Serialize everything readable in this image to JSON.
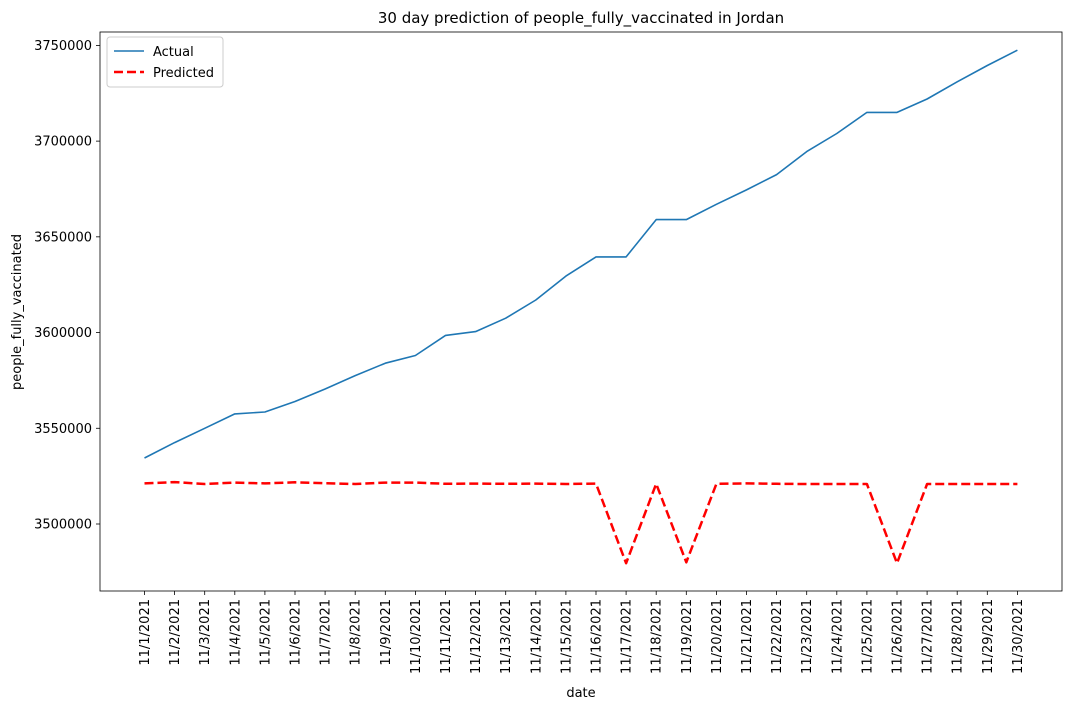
{
  "chart_data": {
    "type": "line",
    "title": "30 day prediction of people_fully_vaccinated in Jordan",
    "xlabel": "date",
    "ylabel": "people_fully_vaccinated",
    "categories": [
      "11/1/2021",
      "11/2/2021",
      "11/3/2021",
      "11/4/2021",
      "11/5/2021",
      "11/6/2021",
      "11/7/2021",
      "11/8/2021",
      "11/9/2021",
      "11/10/2021",
      "11/11/2021",
      "11/12/2021",
      "11/13/2021",
      "11/14/2021",
      "11/15/2021",
      "11/16/2021",
      "11/17/2021",
      "11/18/2021",
      "11/19/2021",
      "11/20/2021",
      "11/21/2021",
      "11/22/2021",
      "11/23/2021",
      "11/24/2021",
      "11/25/2021",
      "11/26/2021",
      "11/27/2021",
      "11/28/2021",
      "11/29/2021",
      "11/30/2021"
    ],
    "y_ticks": [
      3500000,
      3550000,
      3600000,
      3650000,
      3700000,
      3750000
    ],
    "ylim": [
      3465000,
      3757000
    ],
    "grid": false,
    "legend_position": "top-left",
    "series": [
      {
        "name": "Actual",
        "color": "#1f77b4",
        "style": "solid",
        "values": [
          3534500,
          3542500,
          3550000,
          3557500,
          3558500,
          3564000,
          3570500,
          3577500,
          3584000,
          3588000,
          3598500,
          3600500,
          3607500,
          3617000,
          3629500,
          3639500,
          3639500,
          3659000,
          3659000,
          3667000,
          3674500,
          3682500,
          3694500,
          3704000,
          3715000,
          3715000,
          3722000,
          3731000,
          3739500,
          3747500
        ]
      },
      {
        "name": "Predicted",
        "color": "#ff0000",
        "style": "dashed",
        "values": [
          3521200,
          3521900,
          3520900,
          3521600,
          3521200,
          3521800,
          3521300,
          3520900,
          3521600,
          3521600,
          3521000,
          3521100,
          3521000,
          3521100,
          3520900,
          3521100,
          3479500,
          3521000,
          3480000,
          3521000,
          3521200,
          3521000,
          3520900,
          3520900,
          3520900,
          3479500,
          3520900,
          3520900,
          3520900,
          3520900
        ]
      }
    ]
  }
}
